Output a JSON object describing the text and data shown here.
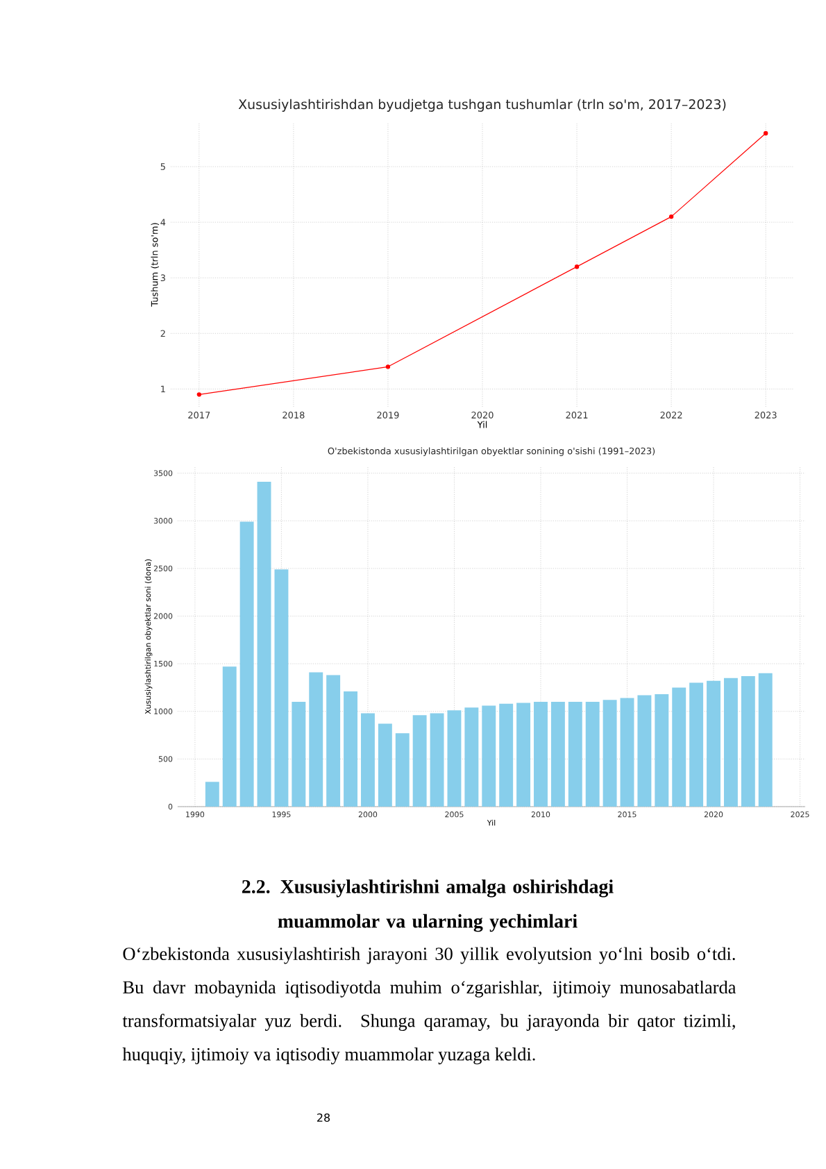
{
  "chart_data": [
    {
      "type": "line",
      "title": "Xususiylashtirishdan byudjetga tushgan tushumlar (trln so'm, 2017–2023)",
      "xlabel": "Yil",
      "ylabel": "Tushum (trln so'm)",
      "x": [
        2017,
        2019,
        2021,
        2022,
        2023
      ],
      "series": [
        {
          "color": "#ff0000",
          "values": [
            0.9,
            1.4,
            3.2,
            4.1,
            5.6
          ]
        }
      ],
      "xlim": [
        2016.7,
        2023.3
      ],
      "ylim": [
        0.68,
        5.8
      ],
      "xticks": [
        2017,
        2018,
        2019,
        2020,
        2021,
        2022,
        2023
      ],
      "yticks": [
        1,
        2,
        3,
        4,
        5
      ],
      "grid": true,
      "marker": "circle",
      "line_style": "solid"
    },
    {
      "type": "bar",
      "title": "O'zbekistonda xususiylashtirilgan obyektlar sonining o'sishi (1991–2023)",
      "xlabel": "Yil",
      "ylabel": "Xususiylashtirilgan obyektlar soni (dona)",
      "x": [
        1991,
        1992,
        1993,
        1994,
        1995,
        1996,
        1997,
        1998,
        1999,
        2000,
        2001,
        2002,
        2003,
        2004,
        2005,
        2006,
        2007,
        2008,
        2009,
        2010,
        2011,
        2012,
        2013,
        2014,
        2015,
        2016,
        2017,
        2018,
        2019,
        2020,
        2021,
        2022,
        2023
      ],
      "series": [
        {
          "color": "#87ceeb",
          "values": [
            260,
            1470,
            2990,
            3410,
            2490,
            1100,
            1410,
            1380,
            1210,
            980,
            870,
            770,
            960,
            980,
            1010,
            1040,
            1060,
            1080,
            1090,
            1100,
            1100,
            1100,
            1100,
            1120,
            1140,
            1170,
            1180,
            1250,
            1300,
            1320,
            1350,
            1370,
            1400
          ]
        }
      ],
      "xlim": [
        1989,
        2025.3
      ],
      "ylim": [
        0,
        3570
      ],
      "xticks": [
        1990,
        1995,
        2000,
        2005,
        2010,
        2015,
        2020,
        2025
      ],
      "yticks": [
        0,
        500,
        1000,
        1500,
        2000,
        2500,
        3000,
        3500
      ],
      "grid": true,
      "annotations": [
        "**2.2. Xususiylashtirishni amalga oshirishdagi muammolar va ularning yechimlari**",
        "O‘zbekistonda xususiylashtirish jarayoni 30 yillik evolyutsion yo‘lni bosib o‘tdi. Bu davr mobaynida iqtisodiyotda muhim o‘zgarishlar, ijtimoiy munosabatlarda transformatsiyalar yuz berdi. Shunga qaramay, bu jarayonda bir qator tizimli, huquqiy, ijtimoiy va iqtisodiy muammolar yuzaga keldi.",
        "28"
      ]
    }
  ]
}
